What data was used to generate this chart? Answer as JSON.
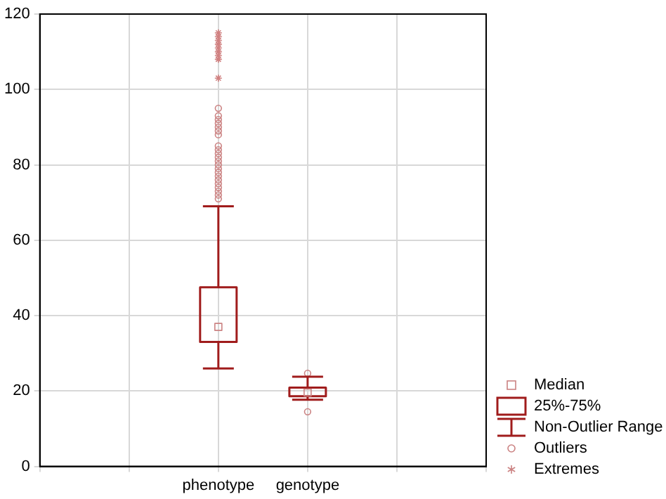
{
  "chart_data": {
    "type": "box",
    "categories": [
      null,
      null,
      "phenotype",
      "genotype",
      null,
      null
    ],
    "ylim": [
      0,
      120
    ],
    "yticks": [
      0,
      20,
      40,
      60,
      80,
      100,
      120
    ],
    "grid": true,
    "annotations": [
      "Median",
      "25%-75%",
      "Non-Outlier Range",
      "Outliers",
      "Extremes"
    ],
    "series": [
      {
        "color": "#a01c1c",
        "boxes": [
          null,
          null,
          {
            "low": 26,
            "q1": 33,
            "median": 37,
            "q3": 47.5,
            "high": 69,
            "outliers": [
              71,
              72,
              73,
              74,
              75,
              76,
              77,
              78,
              79,
              80,
              81,
              82,
              83,
              84,
              85,
              88,
              89,
              90,
              91,
              92,
              93,
              95
            ]
          },
          {
            "low": 17.7,
            "q1": 18.6,
            "median": 19.6,
            "q3": 20.9,
            "high": 23.8,
            "outliers": [
              24.7,
              14.5
            ]
          },
          null,
          null
        ]
      },
      {
        "type": "scatter",
        "marker": "cross",
        "color": "#d08080",
        "x": [
          "phenotype",
          "phenotype",
          "phenotype",
          "phenotype",
          "phenotype",
          "phenotype",
          "phenotype",
          "phenotype",
          "phenotype"
        ],
        "values": [
          103,
          108,
          109,
          110,
          111,
          112,
          113,
          114,
          115
        ]
      }
    ]
  }
}
